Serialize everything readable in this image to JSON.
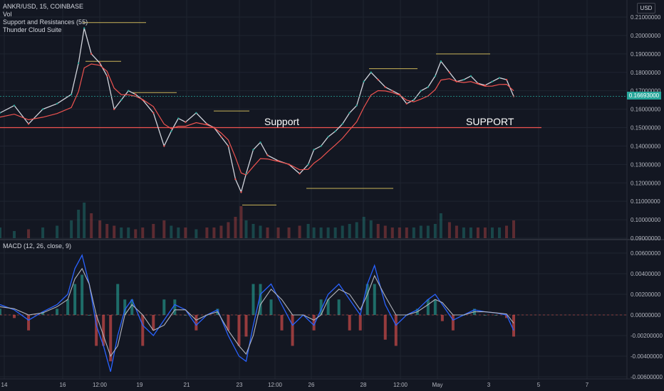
{
  "header": {
    "symbol_line": "ANKR/USD, 15, COINBASE",
    "indicators": [
      "Vol",
      "Support and Resistances (55)",
      "Thunder Cloud Suite"
    ],
    "currency_button": "USD",
    "macd_label": "MACD (12, 26, close, 9)"
  },
  "annotations": {
    "support_left": "Support",
    "support_right": "SUPPORT"
  },
  "last_price_label": "0.16693000",
  "colors": {
    "background": "#131722",
    "up": "#26a69a",
    "down": "#ef5350",
    "support_line": "#ef5350",
    "macd_line": "#2962ff",
    "signal_line": "#b2b5be",
    "level_line": "#c9b458"
  },
  "chart_data": [
    {
      "type": "line",
      "title": "ANKR/USD, 15, COINBASE",
      "ylim": [
        0.09,
        0.21
      ],
      "yticks": [
        "0.21000000",
        "0.20000000",
        "0.19000000",
        "0.18000000",
        "0.17000000",
        "0.16000000",
        "0.15000000",
        "0.14000000",
        "0.13000000",
        "0.12000000",
        "0.11000000",
        "0.10000000",
        "0.09000000"
      ],
      "xticks": [
        "14",
        "16",
        "12:00",
        "19",
        "21",
        "23",
        "12:00",
        "26",
        "28",
        "12:00",
        "May",
        "3",
        "5",
        "7"
      ],
      "support_level": 0.15,
      "last_price": 0.16693,
      "x": [
        0,
        20,
        40,
        60,
        80,
        100,
        110,
        118,
        128,
        140,
        150,
        160,
        170,
        180,
        190,
        200,
        215,
        230,
        240,
        250,
        260,
        275,
        290,
        300,
        310,
        320,
        330,
        338,
        345,
        355,
        365,
        375,
        390,
        405,
        420,
        432,
        440,
        450,
        460,
        470,
        480,
        490,
        500,
        510,
        520,
        530,
        540,
        550,
        560,
        570,
        580,
        590,
        600,
        610,
        618,
        630,
        640,
        650,
        660,
        670,
        680,
        690,
        700,
        710,
        720
      ],
      "series": [
        {
          "values": [
            0.158,
            0.162,
            0.152,
            0.16,
            0.163,
            0.168,
            0.185,
            0.204,
            0.19,
            0.185,
            0.178,
            0.16,
            0.165,
            0.17,
            0.168,
            0.165,
            0.158,
            0.14,
            0.148,
            0.155,
            0.153,
            0.158,
            0.152,
            0.15,
            0.145,
            0.14,
            0.122,
            0.115,
            0.125,
            0.138,
            0.142,
            0.135,
            0.132,
            0.13,
            0.125,
            0.13,
            0.138,
            0.14,
            0.145,
            0.148,
            0.152,
            0.158,
            0.162,
            0.175,
            0.18,
            0.176,
            0.172,
            0.17,
            0.168,
            0.163,
            0.165,
            0.17,
            0.172,
            0.178,
            0.186,
            0.18,
            0.175,
            0.176,
            0.178,
            0.174,
            0.173,
            0.175,
            0.177,
            0.176,
            0.167
          ]
        }
      ],
      "volume": [
        0.3,
        0.2,
        0.25,
        0.3,
        0.35,
        0.5,
        0.8,
        1.0,
        0.7,
        0.5,
        0.4,
        0.35,
        0.3,
        0.3,
        0.25,
        0.3,
        0.4,
        0.5,
        0.35,
        0.3,
        0.3,
        0.25,
        0.3,
        0.3,
        0.35,
        0.45,
        0.6,
        0.9,
        0.5,
        0.4,
        0.35,
        0.3,
        0.3,
        0.3,
        0.35,
        0.4,
        0.3,
        0.3,
        0.3,
        0.3,
        0.35,
        0.4,
        0.45,
        0.6,
        0.5,
        0.4,
        0.35,
        0.3,
        0.3,
        0.3,
        0.3,
        0.35,
        0.35,
        0.4,
        0.7,
        0.45,
        0.35,
        0.3,
        0.3,
        0.3,
        0.3,
        0.3,
        0.3,
        0.35,
        0.5
      ]
    },
    {
      "type": "line",
      "title": "MACD (12, 26, close, 9)",
      "ylim": [
        -0.006,
        0.006
      ],
      "yticks": [
        "0.00600000",
        "0.00400000",
        "0.00200000",
        "0.00000000",
        "-0.00200000",
        "-0.00400000",
        "-0.00600000"
      ],
      "x": [
        0,
        20,
        40,
        60,
        80,
        95,
        105,
        115,
        125,
        135,
        145,
        155,
        165,
        175,
        185,
        200,
        215,
        230,
        245,
        260,
        275,
        290,
        305,
        320,
        335,
        345,
        355,
        365,
        380,
        395,
        410,
        425,
        440,
        450,
        460,
        475,
        490,
        505,
        515,
        525,
        540,
        555,
        570,
        585,
        600,
        610,
        620,
        635,
        650,
        665,
        680,
        695,
        710,
        720
      ],
      "series": [
        {
          "name": "MACD",
          "values": [
            0.001,
            0.0005,
            -0.0005,
            0.0003,
            0.001,
            0.002,
            0.0045,
            0.0058,
            0.003,
            -0.001,
            -0.003,
            -0.0055,
            -0.002,
            0.0005,
            0.0015,
            -0.001,
            -0.002,
            -0.0005,
            0.001,
            0.0005,
            -0.001,
            0.0,
            0.0005,
            -0.002,
            -0.004,
            -0.0045,
            -0.001,
            0.002,
            0.003,
            0.001,
            -0.001,
            0.0,
            -0.001,
            0.0005,
            0.002,
            0.003,
            0.0015,
            0.0,
            0.003,
            0.0048,
            0.001,
            -0.001,
            0.0,
            0.0005,
            0.0015,
            0.002,
            0.001,
            -0.0005,
            0.0,
            0.0005,
            0.0003,
            0.0002,
            0.0,
            -0.0015
          ]
        },
        {
          "name": "Signal",
          "values": [
            0.0008,
            0.0006,
            0.0,
            0.0002,
            0.0008,
            0.0015,
            0.0035,
            0.0045,
            0.003,
            0.0,
            -0.002,
            -0.004,
            -0.003,
            0.0,
            0.001,
            0.0,
            -0.0015,
            -0.001,
            0.0005,
            0.0005,
            -0.0005,
            0.0,
            0.0003,
            -0.0015,
            -0.003,
            -0.0038,
            -0.002,
            0.001,
            0.0025,
            0.0015,
            0.0,
            0.0,
            -0.0005,
            0.0,
            0.0015,
            0.0025,
            0.002,
            0.0005,
            0.002,
            0.0038,
            0.0018,
            0.0,
            0.0,
            0.0003,
            0.001,
            0.0015,
            0.0012,
            0.0,
            0.0,
            0.0003,
            0.0003,
            0.0002,
            0.0001,
            -0.0008
          ]
        }
      ]
    }
  ]
}
